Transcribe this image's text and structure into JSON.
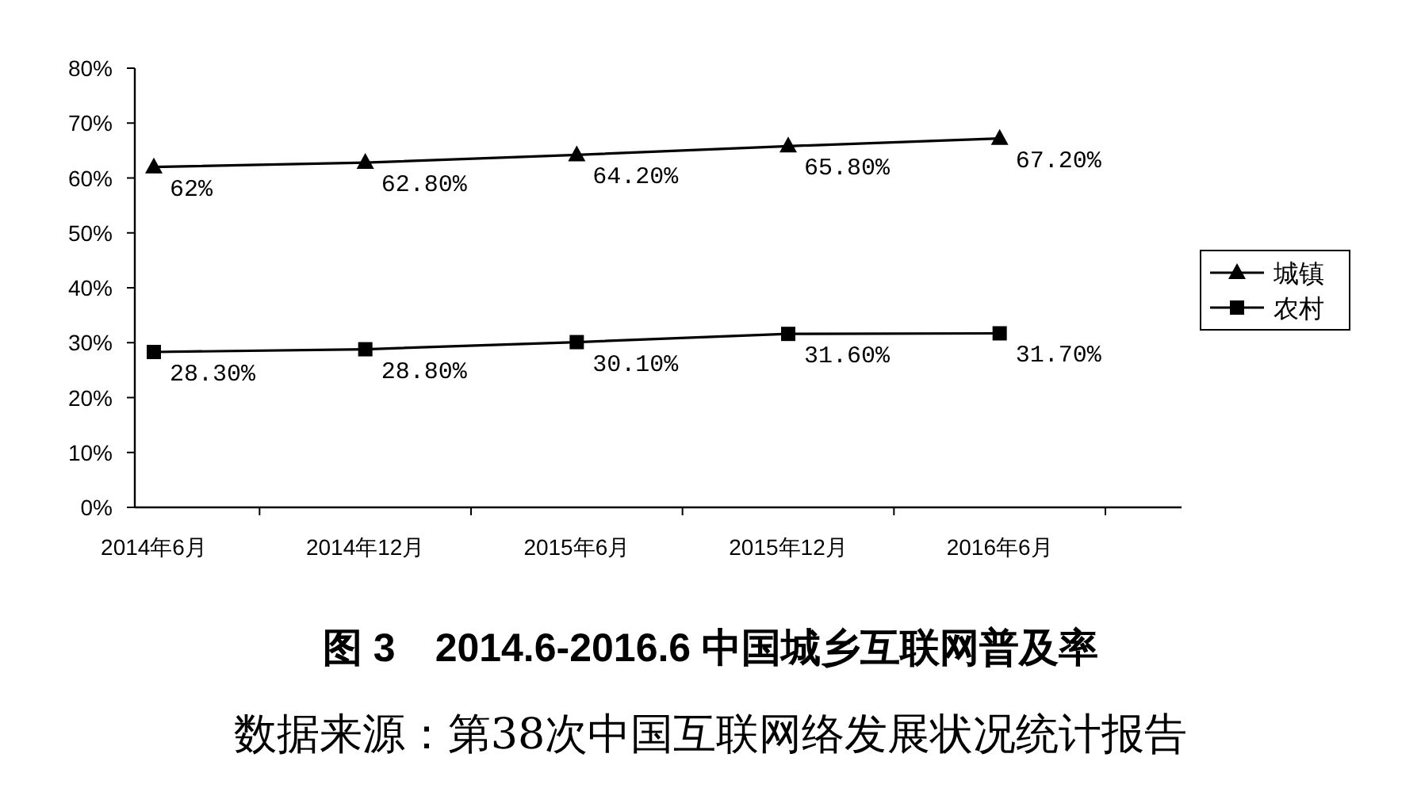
{
  "chart_data": {
    "type": "line",
    "title": "图 3　2014.6-2016.6 中国城乡互联网普及率",
    "annotations": [
      "数据来源：第38次中国互联网络发展状况统计报告"
    ],
    "categories": [
      "2014年6月",
      "2014年12月",
      "2015年6月",
      "2015年12月",
      "2016年6月"
    ],
    "series": [
      {
        "name": "城镇",
        "color": "#000000",
        "marker": "triangle",
        "values": [
          62,
          62.8,
          64.2,
          65.8,
          67.2
        ],
        "value_labels": [
          "62%",
          "62.80%",
          "64.20%",
          "65.80%",
          "67.20%"
        ]
      },
      {
        "name": "农村",
        "color": "#000000",
        "marker": "square",
        "values": [
          28.3,
          28.8,
          30.1,
          31.6,
          31.7
        ],
        "value_labels": [
          "28.30%",
          "28.80%",
          "30.10%",
          "31.60%",
          "31.70%"
        ]
      }
    ],
    "ylim": [
      0,
      80
    ],
    "yticks": [
      {
        "value": 0,
        "label": "0%"
      },
      {
        "value": 10,
        "label": "10%"
      },
      {
        "value": 20,
        "label": "20%"
      },
      {
        "value": 30,
        "label": "30%"
      },
      {
        "value": 40,
        "label": "40%"
      },
      {
        "value": 50,
        "label": "50%"
      },
      {
        "value": 60,
        "label": "60%"
      },
      {
        "value": 70,
        "label": "70%"
      },
      {
        "value": 80,
        "label": "80%"
      }
    ],
    "grid": false,
    "legend": "right",
    "line_style": "solid"
  }
}
